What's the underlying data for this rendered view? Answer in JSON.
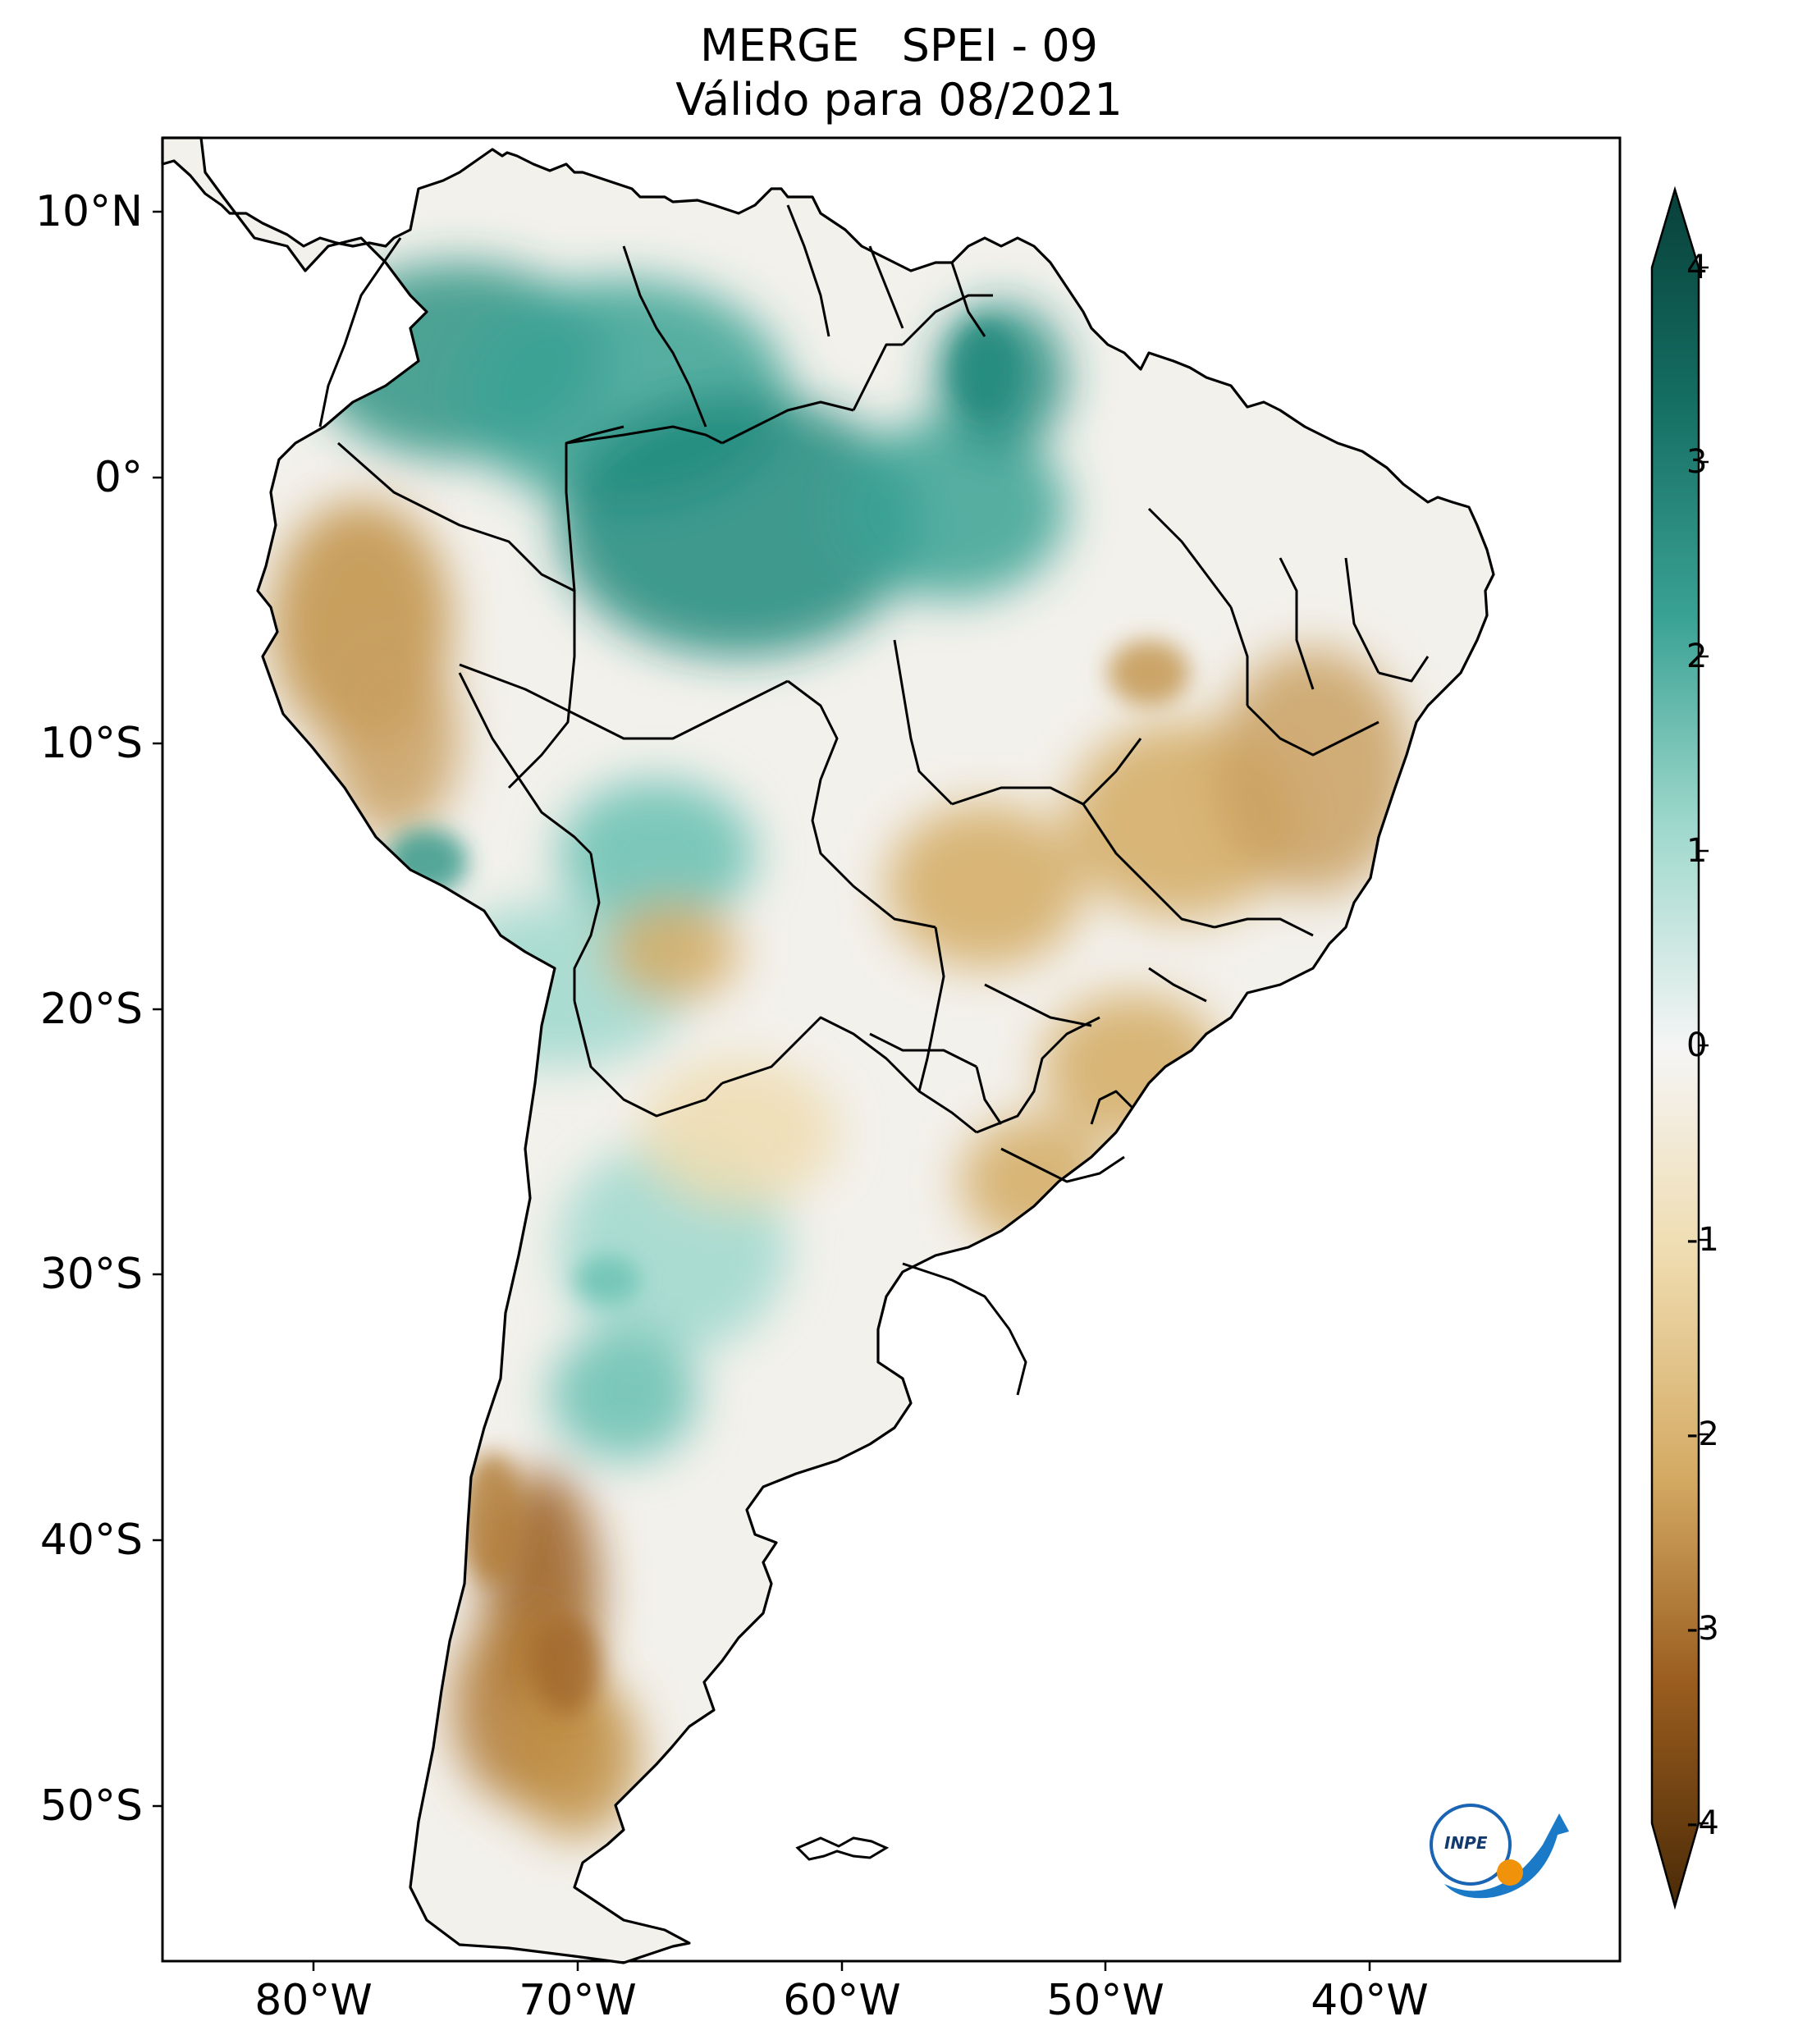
{
  "title": {
    "line1": "MERGE   SPEI - 09",
    "line2": "Válido para 08/2021"
  },
  "axes": {
    "lat_labels": [
      "10°N",
      "0°",
      "10°S",
      "20°S",
      "30°S",
      "40°S",
      "50°S"
    ],
    "lon_labels": [
      "80°W",
      "70°W",
      "60°W",
      "50°W",
      "40°W"
    ]
  },
  "colorbar": {
    "ticks": [
      "4",
      "3",
      "2",
      "1",
      "0",
      "-1",
      "-2",
      "-3",
      "-4"
    ],
    "colors": {
      "wet_max": "#08403a",
      "wet_high": "#1f8a7c",
      "wet_mid": "#66c0b2",
      "wet_low": "#c4e8e1",
      "neutral": "#f5f5f5",
      "dry_low": "#efe0bd",
      "dry_mid": "#d4aa63",
      "dry_high": "#9a5d1f",
      "dry_max": "#4a2a06"
    }
  },
  "logo": {
    "text": "INPE"
  }
}
